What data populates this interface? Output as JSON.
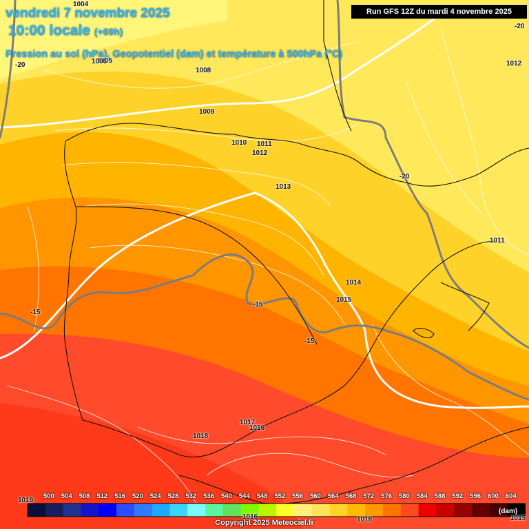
{
  "header": {
    "date_line": "vendredi 7 novembre 2025",
    "time_line": "10:00 locale",
    "lead": "(+69h)",
    "subtitle": "Pression au sol (hPa), Geopotentiel (dam) et température à 500hPa (°C)",
    "run_info": "Run GFS 12Z du mardi 4 novembre 2025"
  },
  "pressure_labels": [
    "1004",
    "1005",
    "1006",
    "1008",
    "1009",
    "1010",
    "1011",
    "1012",
    "1013",
    "1014",
    "1015",
    "1017",
    "1016",
    "1018",
    "1019",
    "1012",
    "1011",
    "1018",
    "1015",
    "1016"
  ],
  "temperature_labels": [
    "-20",
    "-20",
    "-20",
    "-15",
    "-15",
    "-15"
  ],
  "legend": {
    "unit": "(dam)",
    "values": [
      500,
      504,
      508,
      512,
      516,
      520,
      524,
      528,
      532,
      536,
      540,
      544,
      548,
      552,
      556,
      560,
      564,
      568,
      572,
      576,
      580,
      584,
      588,
      592,
      596,
      600,
      604
    ],
    "colors": [
      "#0a0e3c",
      "#141f5f",
      "#1e3491",
      "#1414c8",
      "#0000ff",
      "#2a4dff",
      "#2f7bff",
      "#1ea8ff",
      "#3ad4ff",
      "#7afcff",
      "#5af5a0",
      "#5fe35a",
      "#7cfc00",
      "#b9f600",
      "#fbff2a",
      "#fff07a",
      "#ffe35a",
      "#ffd426",
      "#ffbb00",
      "#ff9900",
      "#ff7300",
      "#ff4a1e",
      "#f00000",
      "#c80000",
      "#960000",
      "#640000",
      "#460000",
      "#000000"
    ]
  },
  "copyright": "Copyright 2025 Meteociel.fr"
}
